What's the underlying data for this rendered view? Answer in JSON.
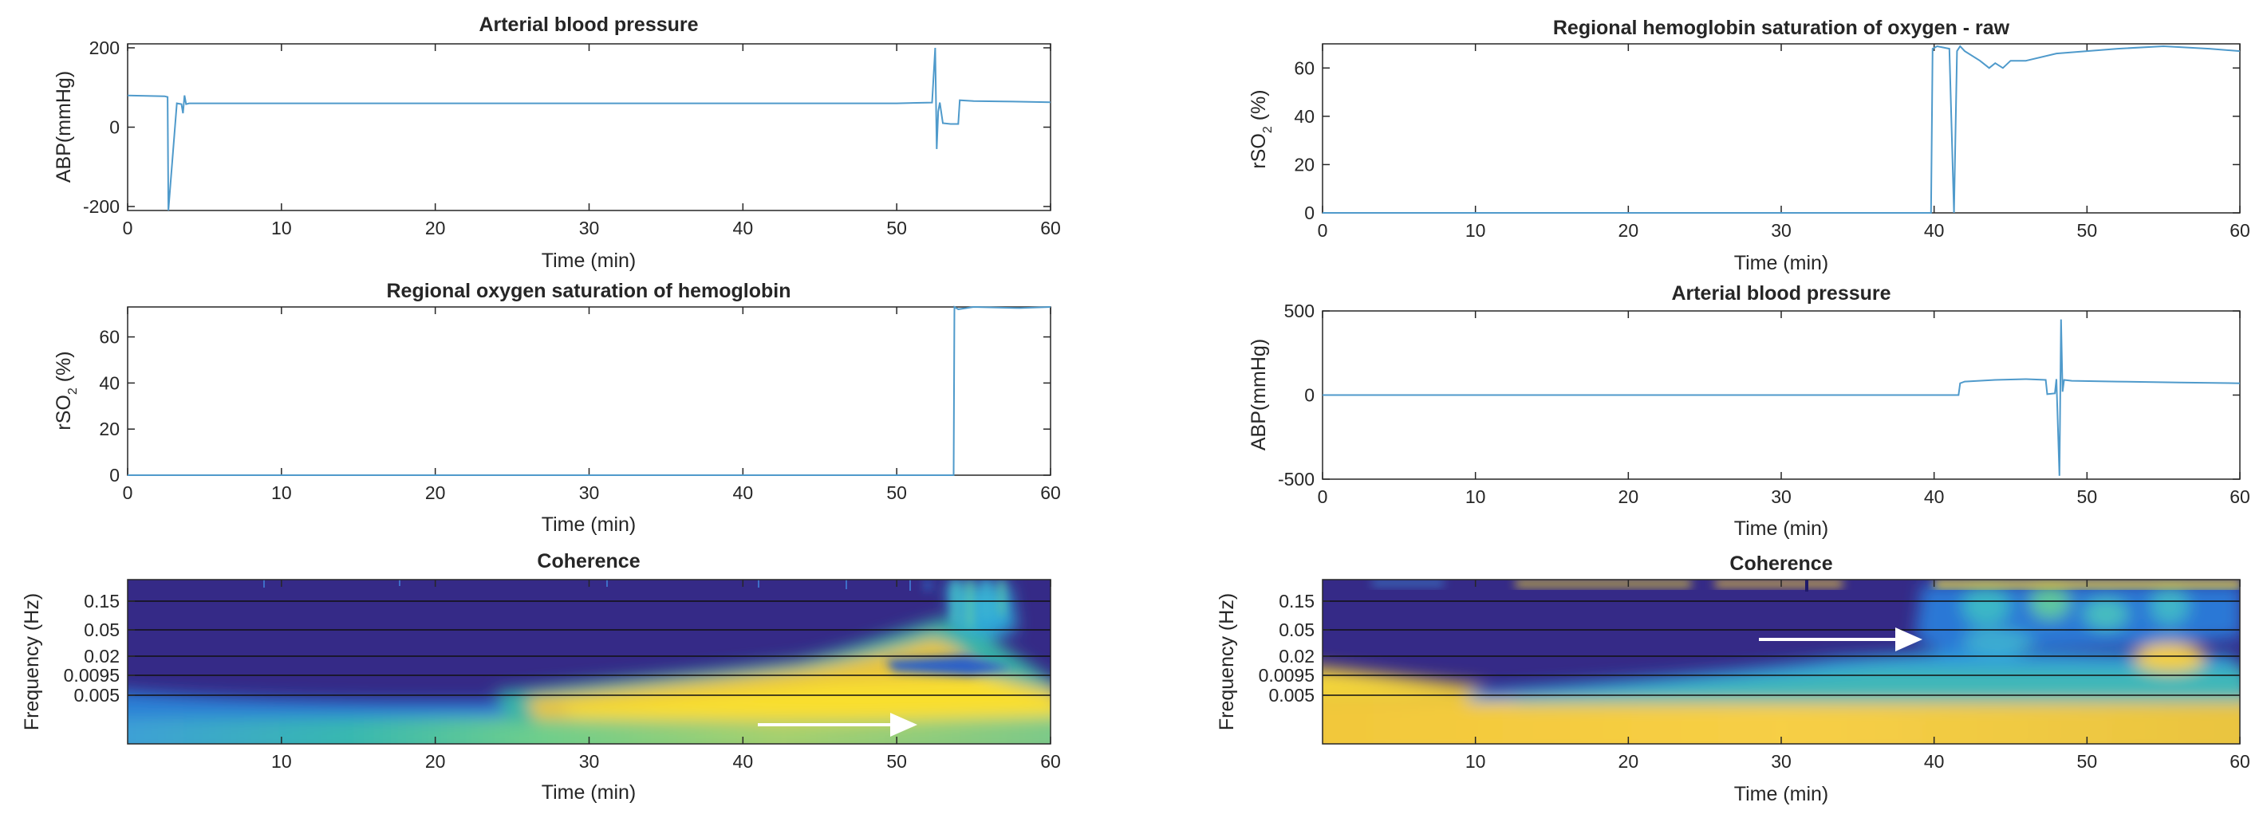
{
  "figure": "Six-panel figure: two columns of ABP / rSO2 time series with wavelet coherence",
  "chart_data": [
    {
      "id": "left_abp",
      "type": "line",
      "title": "Arterial blood pressure",
      "xlabel": "Time (min)",
      "ylabel": "ABP(mmHg)",
      "xlim": [
        0,
        60
      ],
      "ylim": [
        -210,
        210
      ],
      "xticks": [
        0,
        10,
        20,
        30,
        40,
        50,
        60
      ],
      "yticks": [
        -200,
        0,
        200
      ],
      "series": [
        {
          "name": "ABP",
          "color": "#4f9acb",
          "x": [
            0,
            2.4,
            2.6,
            2.65,
            3.2,
            3.5,
            3.6,
            3.7,
            3.8,
            4,
            10,
            20,
            30,
            40,
            50,
            52.3,
            52.5,
            52.6,
            52.7,
            52.8,
            53,
            53.5,
            54,
            54.1,
            55,
            57,
            60
          ],
          "y": [
            80,
            78,
            76,
            -210,
            60,
            58,
            35,
            80,
            58,
            60,
            60,
            60,
            60,
            60,
            60,
            62,
            200,
            -55,
            40,
            62,
            10,
            8,
            8,
            68,
            66,
            65,
            63
          ]
        }
      ]
    },
    {
      "id": "left_rso2",
      "type": "line",
      "title": "Regional oxygen saturation of hemoglobin",
      "xlabel": "Time (min)",
      "ylabel": "rSO",
      "ylabel_sub": "2",
      "ylabel_suffix": " (%)",
      "xlim": [
        0,
        60
      ],
      "ylim": [
        0,
        73
      ],
      "xticks": [
        0,
        10,
        20,
        30,
        40,
        50,
        60
      ],
      "yticks": [
        0,
        20,
        40,
        60
      ],
      "series": [
        {
          "name": "rSO2",
          "color": "#4f9acb",
          "x": [
            0,
            20,
            40,
            53.7,
            53.75,
            54,
            55,
            58,
            60
          ],
          "y": [
            0,
            0,
            0,
            0,
            73,
            72,
            73,
            72.5,
            73
          ]
        }
      ]
    },
    {
      "id": "left_coh",
      "type": "heatmap",
      "title": "Coherence",
      "xlabel": "Time (min)",
      "ylabel": "Frequency (Hz)",
      "xlim": [
        0,
        60
      ],
      "xticks": [
        10,
        20,
        30,
        40,
        50,
        60
      ],
      "yticks": [
        "0.15",
        "0.05",
        "0.02",
        "0.0095",
        "0.005"
      ],
      "colormap": "parula",
      "value_range": [
        0,
        1
      ],
      "annotation": "white arrow pointing right near 41–51 min"
    },
    {
      "id": "right_rso2_raw",
      "type": "line",
      "title": "Regional hemoglobin saturation of oxygen - raw",
      "xlabel": "Time (min)",
      "ylabel": "rSO",
      "ylabel_sub": "2",
      "ylabel_suffix": " (%)",
      "xlim": [
        0,
        60
      ],
      "ylim": [
        0,
        70
      ],
      "xticks": [
        0,
        10,
        20,
        30,
        40,
        50,
        60
      ],
      "yticks": [
        0,
        20,
        40,
        60
      ],
      "series": [
        {
          "name": "rSO2 raw",
          "color": "#4f9acb",
          "x": [
            0,
            20,
            39.8,
            39.9,
            40.2,
            41,
            41.3,
            41.5,
            41.7,
            42,
            43,
            43.6,
            44,
            44.5,
            45,
            46,
            48,
            50,
            52,
            55,
            58,
            60
          ],
          "y": [
            0,
            0,
            0,
            68,
            69,
            68,
            0,
            67,
            69,
            67,
            63,
            60,
            62,
            60,
            63,
            63,
            66,
            67,
            68,
            69,
            68,
            67
          ]
        }
      ]
    },
    {
      "id": "right_abp",
      "type": "line",
      "title": "Arterial blood pressure",
      "xlabel": "Time (min)",
      "ylabel": "ABP(mmHg)",
      "xlim": [
        0,
        60
      ],
      "ylim": [
        -500,
        500
      ],
      "xticks": [
        0,
        10,
        20,
        30,
        40,
        50,
        60
      ],
      "yticks": [
        -500,
        0,
        500
      ],
      "series": [
        {
          "name": "ABP",
          "color": "#4f9acb",
          "x": [
            0,
            20,
            41.6,
            41.7,
            42,
            44,
            46,
            47.3,
            47.4,
            47.9,
            48,
            48.2,
            48.3,
            48.4,
            48.5,
            49,
            52,
            56,
            60
          ],
          "y": [
            0,
            0,
            0,
            70,
            80,
            90,
            95,
            90,
            5,
            10,
            95,
            -480,
            450,
            20,
            90,
            85,
            80,
            75,
            70
          ]
        }
      ]
    },
    {
      "id": "right_coh",
      "type": "heatmap",
      "title": "Coherence",
      "xlabel": "Time (min)",
      "ylabel": "Frequency (Hz)",
      "xlim": [
        0,
        60
      ],
      "xticks": [
        10,
        20,
        30,
        40,
        50,
        60
      ],
      "yticks": [
        "0.15",
        "0.05",
        "0.02",
        "0.0095",
        "0.005"
      ],
      "colormap": "parula",
      "value_range": [
        0,
        1
      ],
      "annotation": "white arrow pointing right near 28.5–38.5 min"
    }
  ]
}
